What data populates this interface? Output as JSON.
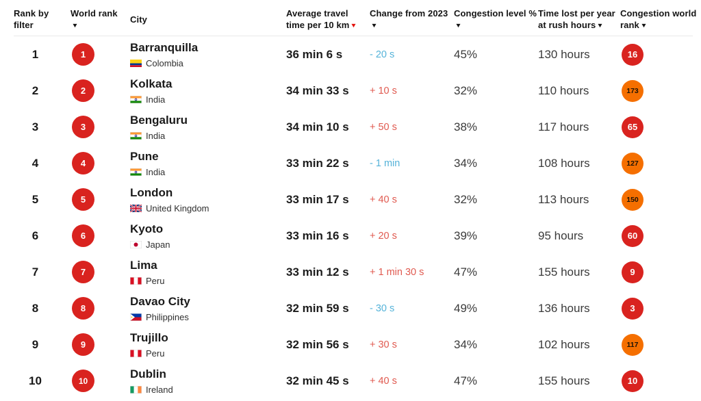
{
  "table": {
    "columns": [
      {
        "id": "rank-by-filter",
        "lines": [
          "Rank by",
          "filter"
        ],
        "arrow": null,
        "arrow_placement": null,
        "sortable": false
      },
      {
        "id": "world-rank",
        "lines": [
          "World rank"
        ],
        "arrow": "black",
        "arrow_placement": "newline",
        "sortable": true
      },
      {
        "id": "city",
        "lines": [
          "City"
        ],
        "arrow": null,
        "arrow_placement": null,
        "sortable": false
      },
      {
        "id": "avg-travel-time",
        "lines": [
          "Average travel",
          "time per 10 km"
        ],
        "arrow": "red",
        "arrow_placement": "inline",
        "sortable": true
      },
      {
        "id": "change-from-2023",
        "lines": [
          "Change from 2023"
        ],
        "arrow": "black",
        "arrow_placement": "newline",
        "sortable": true
      },
      {
        "id": "congestion-level",
        "lines": [
          "Congestion level %"
        ],
        "arrow": "black",
        "arrow_placement": "newline",
        "sortable": true
      },
      {
        "id": "time-lost",
        "lines": [
          "Time lost per year",
          "at rush hours"
        ],
        "arrow": "black",
        "arrow_placement": "inline",
        "sortable": true
      },
      {
        "id": "congestion-world-rank",
        "lines": [
          "Congestion world",
          "rank"
        ],
        "arrow": "black",
        "arrow_placement": "inline",
        "sortable": true
      }
    ],
    "rows": [
      {
        "rank": "1",
        "world_rank": "1",
        "city": "Barranquilla",
        "country": "Colombia",
        "flag": "colombia",
        "avg_time": "36 min 6 s",
        "change": "- 20 s",
        "change_direction": "decrease",
        "congestion_level": "45%",
        "time_lost": "130 hours",
        "congestion_world_rank": "16",
        "congestion_rank_color": "red"
      },
      {
        "rank": "2",
        "world_rank": "2",
        "city": "Kolkata",
        "country": "India",
        "flag": "india",
        "avg_time": "34 min 33 s",
        "change": "+ 10 s",
        "change_direction": "increase",
        "congestion_level": "32%",
        "time_lost": "110 hours",
        "congestion_world_rank": "173",
        "congestion_rank_color": "orange"
      },
      {
        "rank": "3",
        "world_rank": "3",
        "city": "Bengaluru",
        "country": "India",
        "flag": "india",
        "avg_time": "34 min 10 s",
        "change": "+ 50 s",
        "change_direction": "increase",
        "congestion_level": "38%",
        "time_lost": "117 hours",
        "congestion_world_rank": "65",
        "congestion_rank_color": "red"
      },
      {
        "rank": "4",
        "world_rank": "4",
        "city": "Pune",
        "country": "India",
        "flag": "india",
        "avg_time": "33 min 22 s",
        "change": "- 1 min",
        "change_direction": "decrease",
        "congestion_level": "34%",
        "time_lost": "108 hours",
        "congestion_world_rank": "127",
        "congestion_rank_color": "orange"
      },
      {
        "rank": "5",
        "world_rank": "5",
        "city": "London",
        "country": "United Kingdom",
        "flag": "uk",
        "avg_time": "33 min 17 s",
        "change": "+ 40 s",
        "change_direction": "increase",
        "congestion_level": "32%",
        "time_lost": "113 hours",
        "congestion_world_rank": "150",
        "congestion_rank_color": "orange"
      },
      {
        "rank": "6",
        "world_rank": "6",
        "city": "Kyoto",
        "country": "Japan",
        "flag": "japan",
        "avg_time": "33 min 16 s",
        "change": "+ 20 s",
        "change_direction": "increase",
        "congestion_level": "39%",
        "time_lost": "95 hours",
        "congestion_world_rank": "60",
        "congestion_rank_color": "red"
      },
      {
        "rank": "7",
        "world_rank": "7",
        "city": "Lima",
        "country": "Peru",
        "flag": "peru",
        "avg_time": "33 min 12 s",
        "change": "+ 1 min 30 s",
        "change_direction": "increase",
        "congestion_level": "47%",
        "time_lost": "155 hours",
        "congestion_world_rank": "9",
        "congestion_rank_color": "red"
      },
      {
        "rank": "8",
        "world_rank": "8",
        "city": "Davao City",
        "country": "Philippines",
        "flag": "philippines",
        "avg_time": "32 min 59 s",
        "change": "- 30 s",
        "change_direction": "decrease",
        "congestion_level": "49%",
        "time_lost": "136 hours",
        "congestion_world_rank": "3",
        "congestion_rank_color": "red"
      },
      {
        "rank": "9",
        "world_rank": "9",
        "city": "Trujillo",
        "country": "Peru",
        "flag": "peru",
        "avg_time": "32 min 56 s",
        "change": "+ 30 s",
        "change_direction": "increase",
        "congestion_level": "34%",
        "time_lost": "102 hours",
        "congestion_world_rank": "117",
        "congestion_rank_color": "orange"
      },
      {
        "rank": "10",
        "world_rank": "10",
        "city": "Dublin",
        "country": "Ireland",
        "flag": "ireland",
        "avg_time": "32 min 45 s",
        "change": "+ 40 s",
        "change_direction": "increase",
        "congestion_level": "47%",
        "time_lost": "155 hours",
        "congestion_world_rank": "10",
        "congestion_rank_color": "red"
      }
    ]
  },
  "colors": {
    "badge_red": "#d9231f",
    "badge_orange": "#f56f00",
    "badge_red_text": "#ffffff",
    "badge_orange_text": "#1d1206",
    "change_increase": "#e05a50",
    "change_decrease": "#55b3d9",
    "sort_arrow_active": "#e3120b",
    "sort_arrow_default": "#141414"
  }
}
